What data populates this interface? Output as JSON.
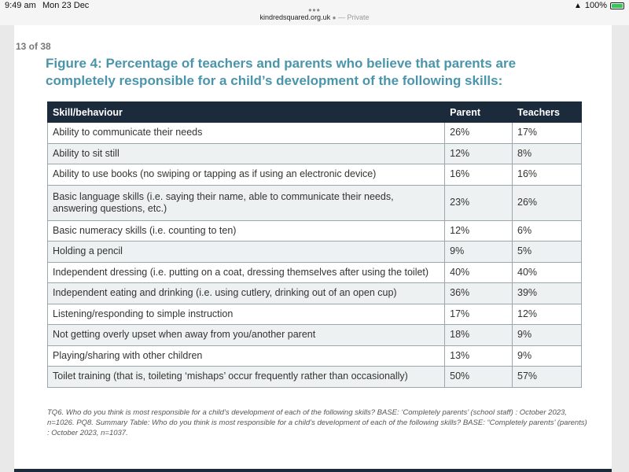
{
  "status_bar": {
    "time": "9:49 am",
    "date": "Mon 23 Dec",
    "battery": "100%",
    "battery_level": 1.0
  },
  "address_bar": {
    "url": "kindredsquared.org.uk",
    "private_label": "— Private"
  },
  "page": {
    "counter": "13 of 38",
    "title": "Figure 4: Percentage of teachers and parents who believe that parents are completely responsible for a child’s development of the following skills:",
    "footnote": "TQ6. Who do you think is most responsible for a child’s development of each of the following skills? BASE: ‘Completely parents’ (school staff) : October 2023, n=1026. PQ8. Summary Table: Who do you think is most responsible for a child’s development of each of the following skills? BASE: “Completely parents’ (parents) : October 2023, n=1037."
  },
  "table": {
    "headers": {
      "skill": "Skill/behaviour",
      "parent": "Parent",
      "teachers": "Teachers"
    },
    "rows": [
      {
        "skill": "Ability to communicate their needs",
        "parent": "26%",
        "teachers": "17%"
      },
      {
        "skill": "Ability to sit still",
        "parent": "12%",
        "teachers": "8%"
      },
      {
        "skill": "Ability to use books (no swiping or tapping as if using an electronic device)",
        "parent": "16%",
        "teachers": "16%"
      },
      {
        "skill": "Basic language skills (i.e. saying their name, able to communicate their needs, answering questions, etc.)",
        "parent": "23%",
        "teachers": "26%"
      },
      {
        "skill": "Basic numeracy skills (i.e. counting to ten)",
        "parent": "12%",
        "teachers": "6%"
      },
      {
        "skill": "Holding a pencil",
        "parent": "9%",
        "teachers": "5%"
      },
      {
        "skill": "Independent dressing (i.e. putting on a coat, dressing themselves after using the toilet)",
        "parent": "40%",
        "teachers": "40%"
      },
      {
        "skill": "Independent eating and drinking (i.e. using cutlery, drinking out of an open cup)",
        "parent": "36%",
        "teachers": "39%"
      },
      {
        "skill": "Listening/responding to simple instruction",
        "parent": "17%",
        "teachers": "12%"
      },
      {
        "skill": "Not getting overly upset when away from you/another parent",
        "parent": "18%",
        "teachers": "9%"
      },
      {
        "skill": "Playing/sharing with other children",
        "parent": "13%",
        "teachers": "9%"
      },
      {
        "skill": "Toilet training (that is, toileting ‘mishaps’ occur frequently rather than occasionally)",
        "parent": "50%",
        "teachers": "57%"
      }
    ]
  }
}
